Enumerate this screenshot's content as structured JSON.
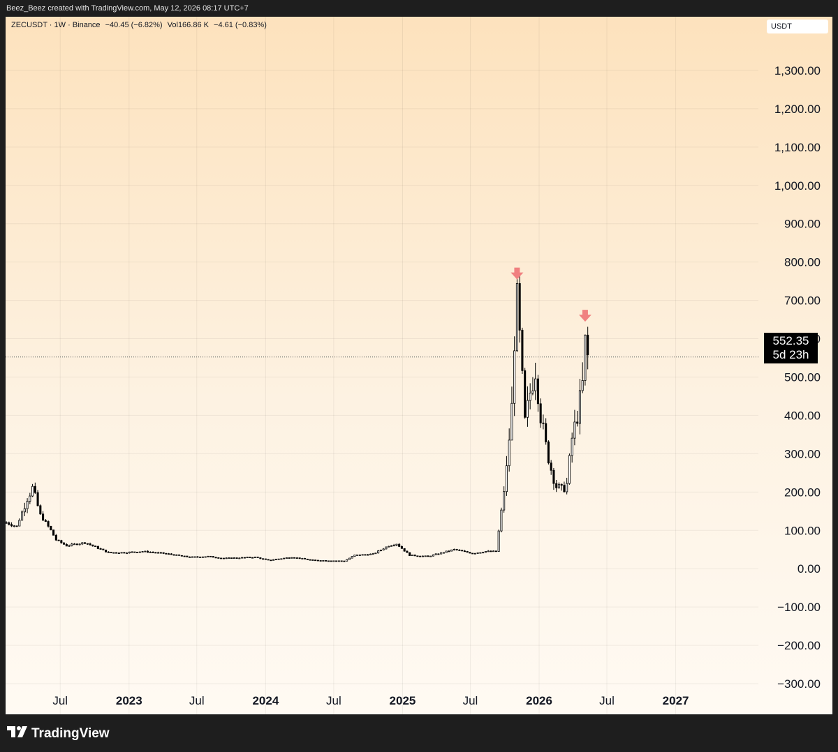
{
  "header": {
    "credit": "Beez_Beez created with TradingView.com, May 12, 2026 08:17 UTC+7"
  },
  "legend": {
    "symbol": "ZECUSDT · 1W · Binance",
    "change": "−40.45 (−6.82%)",
    "vol_label": "Vol",
    "vol_value": "166.86 K",
    "vol_change": "−4.61 (−0.83%)"
  },
  "currency": "USDT",
  "price_tag": {
    "price": "552.35",
    "countdown": "5d 23h"
  },
  "footer": {
    "brand": "TradingView"
  },
  "colors": {
    "background_top": "#fde2bd",
    "background_bottom": "#fffaf3",
    "marker": "#f08080",
    "candle": "#000000"
  },
  "chart_data": {
    "type": "candlestick",
    "title": "",
    "xlabel": "",
    "ylabel": "",
    "y_ticks": [
      "1,300.00",
      "1,200.00",
      "1,100.00",
      "1,000.00",
      "900.00",
      "800.00",
      "700.00",
      "600.00",
      "500.00",
      "400.00",
      "300.00",
      "200.00",
      "100.00",
      "0.00",
      "−100.00",
      "−200.00",
      "−300.00"
    ],
    "x_ticks": [
      "Jul",
      "2023",
      "Jul",
      "2024",
      "Jul",
      "2025",
      "Jul",
      "2026",
      "Jul",
      "2027"
    ],
    "ylim": [
      -380,
      1440
    ],
    "xlim": [
      "2022-02-05",
      "2027-08-10"
    ],
    "grid": true,
    "last_price": 552.35,
    "markers": [
      {
        "type": "arrow-down",
        "x": "2025-11-03",
        "y": 760
      },
      {
        "type": "arrow-down",
        "x": "2026-05-04",
        "y": 650
      }
    ],
    "anchors": [
      [
        "2022-02-07",
        120
      ],
      [
        "2022-03-07",
        110
      ],
      [
        "2022-04-04",
        185
      ],
      [
        "2022-04-18",
        210
      ],
      [
        "2022-05-09",
        140
      ],
      [
        "2022-06-06",
        100
      ],
      [
        "2022-06-20",
        75
      ],
      [
        "2022-07-18",
        60
      ],
      [
        "2022-09-05",
        68
      ],
      [
        "2022-11-07",
        42
      ],
      [
        "2022-12-19",
        42
      ],
      [
        "2023-02-06",
        45
      ],
      [
        "2023-04-03",
        40
      ],
      [
        "2023-06-12",
        30
      ],
      [
        "2023-07-31",
        32
      ],
      [
        "2023-09-11",
        27
      ],
      [
        "2023-12-04",
        30
      ],
      [
        "2024-01-08",
        22
      ],
      [
        "2024-03-11",
        30
      ],
      [
        "2024-05-06",
        22
      ],
      [
        "2024-07-29",
        20
      ],
      [
        "2024-08-26",
        35
      ],
      [
        "2024-10-14",
        38
      ],
      [
        "2024-11-25",
        60
      ],
      [
        "2024-12-16",
        65
      ],
      [
        "2025-01-20",
        35
      ],
      [
        "2025-03-10",
        32
      ],
      [
        "2025-05-19",
        50
      ],
      [
        "2025-07-07",
        40
      ],
      [
        "2025-08-11",
        45
      ],
      [
        "2025-09-08",
        45
      ],
      [
        "2025-09-22",
        150
      ],
      [
        "2025-10-06",
        260
      ],
      [
        "2025-10-20",
        420
      ],
      [
        "2025-10-27",
        600
      ],
      [
        "2025-11-03",
        700
      ],
      [
        "2025-11-10",
        600
      ],
      [
        "2025-11-24",
        380
      ],
      [
        "2025-12-08",
        460
      ],
      [
        "2025-12-22",
        520
      ],
      [
        "2026-01-05",
        400
      ],
      [
        "2026-01-19",
        320
      ],
      [
        "2026-02-02",
        260
      ],
      [
        "2026-02-16",
        215
      ],
      [
        "2026-03-02",
        205
      ],
      [
        "2026-03-16",
        220
      ],
      [
        "2026-03-30",
        340
      ],
      [
        "2026-04-13",
        400
      ],
      [
        "2026-04-27",
        480
      ],
      [
        "2026-05-04",
        590
      ],
      [
        "2026-05-11",
        552
      ]
    ]
  }
}
